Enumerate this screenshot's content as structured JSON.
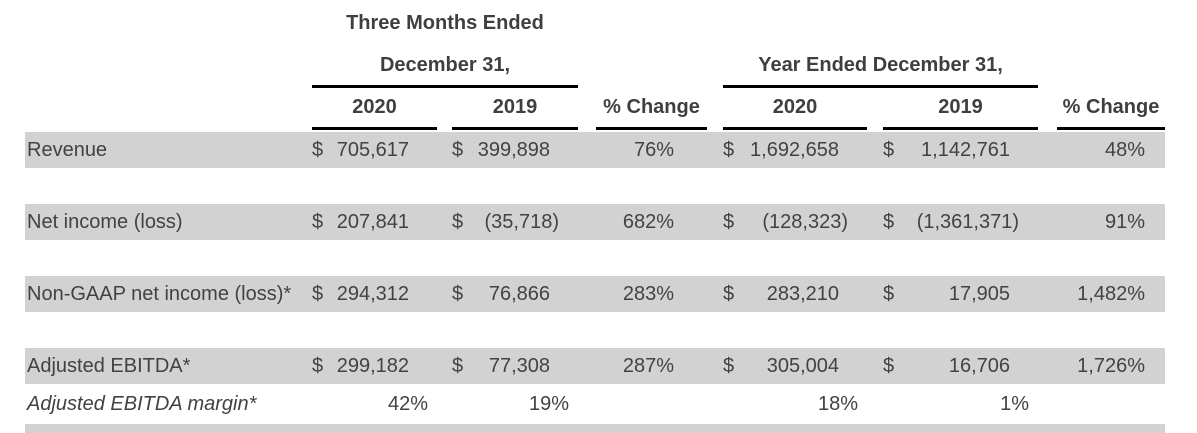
{
  "colors": {
    "row_shade": "#d2d2d2",
    "text": "#424242",
    "rule": "#000000"
  },
  "currency_symbol": "$",
  "header": {
    "three_months_line1": "Three Months Ended",
    "three_months_line2": "December 31,",
    "year_ended_title": "Year Ended December 31,",
    "columns": {
      "tme_2020": "2020",
      "tme_2019": "2019",
      "pct_change_1": "% Change",
      "ye_2020": "2020",
      "ye_2019": "2019",
      "pct_change_2": "% Change"
    }
  },
  "rows": [
    {
      "label": "Revenue",
      "tme_2020": "705,617",
      "tme_2019": "399,898",
      "pct_change_1": "76%",
      "ye_2020": "1,692,658",
      "ye_2019": "1,142,761",
      "pct_change_2": "48%"
    },
    {
      "label": "Net income (loss)",
      "tme_2020": "207,841",
      "tme_2019": "(35,718)",
      "pct_change_1": "682%",
      "ye_2020": "(128,323)",
      "ye_2019": "(1,361,371)",
      "pct_change_2": "91%"
    },
    {
      "label": "Non-GAAP net income (loss)*",
      "tme_2020": "294,312",
      "tme_2019": "76,866",
      "pct_change_1": "283%",
      "ye_2020": "283,210",
      "ye_2019": "17,905",
      "pct_change_2": "1,482%"
    },
    {
      "label": "Adjusted EBITDA*",
      "tme_2020": "299,182",
      "tme_2019": "77,308",
      "pct_change_1": "287%",
      "ye_2020": "305,004",
      "ye_2019": "16,706",
      "pct_change_2": "1,726%"
    },
    {
      "label": "Adjusted EBITDA margin*",
      "tme_2020": "42%",
      "tme_2019": "19%",
      "ye_2020": "18%",
      "ye_2019": "1%"
    }
  ]
}
